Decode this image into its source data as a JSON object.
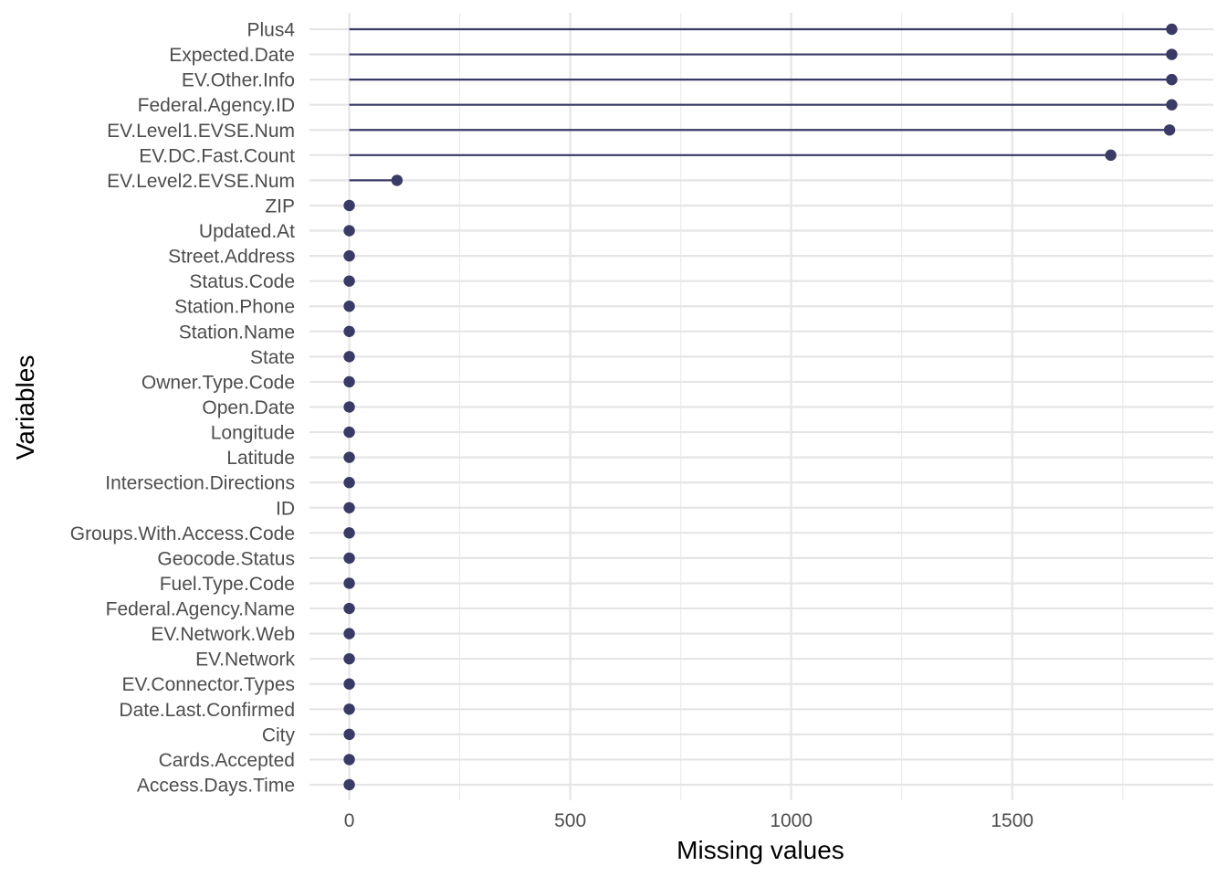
{
  "chart_data": {
    "type": "lollipop",
    "xlabel": "Missing values",
    "ylabel": "Variables",
    "xlim": [
      -90,
      1955
    ],
    "xticks": [
      0,
      500,
      1000,
      1500
    ],
    "grid": true,
    "legend": "none",
    "color": "#3a3a66",
    "categories": [
      "Plus4",
      "Expected.Date",
      "EV.Other.Info",
      "Federal.Agency.ID",
      "EV.Level1.EVSE.Num",
      "EV.DC.Fast.Count",
      "EV.Level2.EVSE.Num",
      "ZIP",
      "Updated.At",
      "Street.Address",
      "Status.Code",
      "Station.Phone",
      "Station.Name",
      "State",
      "Owner.Type.Code",
      "Open.Date",
      "Longitude",
      "Latitude",
      "Intersection.Directions",
      "ID",
      "Groups.With.Access.Code",
      "Geocode.Status",
      "Fuel.Type.Code",
      "Federal.Agency.Name",
      "EV.Network.Web",
      "EV.Network",
      "EV.Connector.Types",
      "Date.Last.Confirmed",
      "City",
      "Cards.Accepted",
      "Access.Days.Time"
    ],
    "values": [
      1861,
      1861,
      1861,
      1861,
      1856,
      1723,
      108,
      0,
      0,
      0,
      0,
      0,
      0,
      0,
      0,
      0,
      0,
      0,
      0,
      0,
      0,
      0,
      0,
      0,
      0,
      0,
      0,
      0,
      0,
      0,
      0
    ]
  }
}
